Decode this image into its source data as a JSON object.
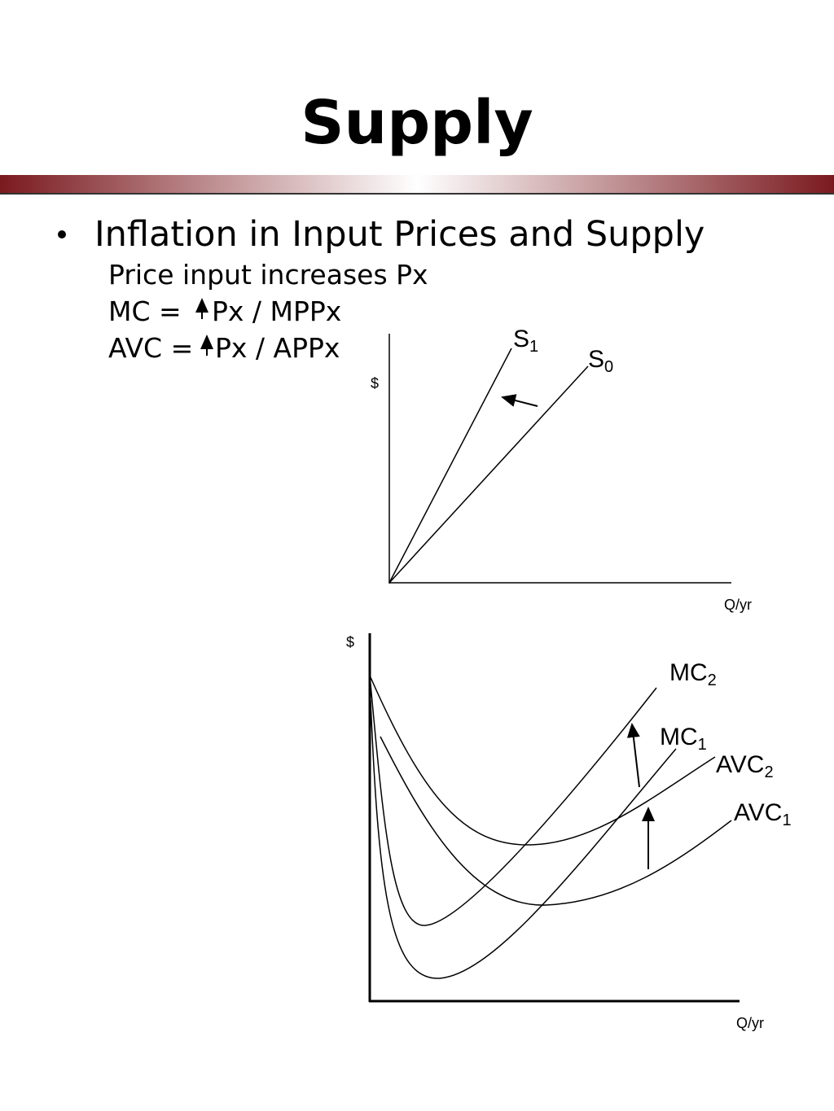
{
  "header": {
    "title": "Supply"
  },
  "bullet": {
    "text": "Inflation in Input Prices and Supply",
    "lines": [
      {
        "parts": [
          "Price input increases  Px"
        ]
      },
      {
        "parts": [
          "MC = ",
          "Px / MPPx"
        ]
      },
      {
        "parts": [
          "AVC =",
          "Px / APPx"
        ]
      }
    ]
  },
  "diagram_top": {
    "y_label": "$",
    "x_label": "Q/yr",
    "curves": [
      {
        "base": "S",
        "sub": "1"
      },
      {
        "base": "S",
        "sub": "0"
      }
    ]
  },
  "diagram_bottom": {
    "y_label": "$",
    "x_label": "Q/yr",
    "curves": [
      {
        "base": "MC",
        "sub": "2"
      },
      {
        "base": "MC",
        "sub": "1"
      },
      {
        "base": "AVC",
        "sub": "2"
      },
      {
        "base": "AVC",
        "sub": "1"
      }
    ]
  }
}
